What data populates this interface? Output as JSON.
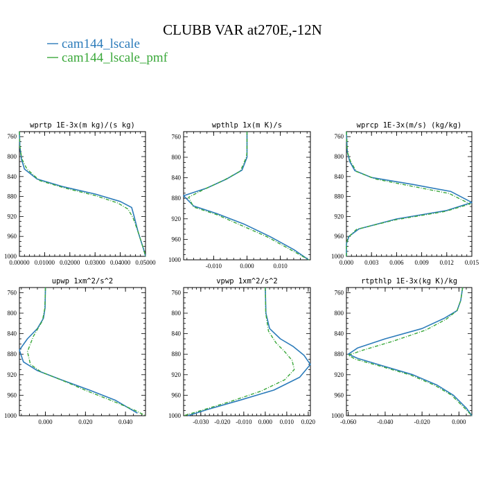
{
  "title": "CLUBB VAR at270E,-12N",
  "legend": [
    {
      "name": "cam144_lscale",
      "color": "#2b7bba"
    },
    {
      "name": "cam144_lscale_pmf",
      "color": "#3aa83a"
    }
  ],
  "chart_data": [
    {
      "type": "line",
      "title": "wprtp  1E-3x(m kg)/(s kg)",
      "xlim": [
        0,
        0.05
      ],
      "ylim": [
        1000,
        750
      ],
      "xticks": [
        "0.00000",
        "0.01000",
        "0.02000",
        "0.03000",
        "0.04000",
        "0.05000"
      ],
      "xtick_values": [
        0,
        0.01,
        0.02,
        0.03,
        0.04,
        0.05
      ],
      "yticks": [
        "760",
        "800",
        "840",
        "880",
        "920",
        "960",
        "1000"
      ],
      "ytick_values": [
        760,
        800,
        840,
        880,
        920,
        960,
        1000
      ],
      "series": [
        {
          "name": "cam144_lscale",
          "x": [
            0,
            0.0002,
            0.0008,
            0.002,
            0.007,
            0.017,
            0.03,
            0.04,
            0.0445,
            0.0455,
            0.047,
            0.0495,
            0.05
          ],
          "y": [
            750,
            780,
            805,
            825,
            845,
            860,
            875,
            890,
            902,
            920,
            950,
            990,
            1000
          ]
        },
        {
          "name": "cam144_lscale_pmf",
          "x": [
            0,
            0.0002,
            0.001,
            0.003,
            0.008,
            0.018,
            0.03,
            0.039,
            0.043,
            0.045,
            0.047,
            0.0495,
            0.05
          ],
          "y": [
            750,
            780,
            805,
            825,
            848,
            863,
            878,
            893,
            905,
            922,
            950,
            990,
            1000
          ]
        }
      ]
    },
    {
      "type": "line",
      "title": "wpthlp  1x(m K)/s",
      "xlim": [
        -0.019,
        0.019
      ],
      "ylim": [
        1000,
        750
      ],
      "xticks": [
        "-0.010",
        "0.000",
        "0.010"
      ],
      "xtick_values": [
        -0.01,
        0,
        0.01
      ],
      "yticks": [
        "760",
        "800",
        "840",
        "880",
        "920",
        "960",
        "1000"
      ],
      "ytick_values": [
        760,
        800,
        840,
        880,
        920,
        960,
        1000
      ],
      "series": [
        {
          "name": "cam144_lscale",
          "x": [
            0,
            0,
            0,
            -0.0015,
            -0.006,
            -0.012,
            -0.019,
            -0.016,
            -0.009,
            -0.001,
            0.007,
            0.014,
            0.0185
          ],
          "y": [
            750,
            790,
            800,
            825,
            842,
            860,
            875,
            895,
            910,
            930,
            955,
            980,
            1000
          ]
        },
        {
          "name": "cam144_lscale_pmf",
          "x": [
            0,
            0,
            -0.0002,
            -0.002,
            -0.007,
            -0.013,
            -0.0175,
            -0.016,
            -0.009,
            -0.002,
            0.006,
            0.013,
            0.0185
          ],
          "y": [
            750,
            790,
            800,
            827,
            845,
            863,
            878,
            897,
            912,
            932,
            955,
            980,
            1000
          ]
        }
      ]
    },
    {
      "type": "line",
      "title": "wprcp  1E-3x(m/s) (kg/kg)",
      "xlim": [
        0,
        0.015
      ],
      "ylim": [
        1000,
        750
      ],
      "xticks": [
        "0.000",
        "0.003",
        "0.006",
        "0.009",
        "0.012",
        "0.015"
      ],
      "xtick_values": [
        0,
        0.003,
        0.006,
        0.009,
        0.012,
        0.015
      ],
      "yticks": [
        "760",
        "800",
        "840",
        "880",
        "920",
        "960",
        "1000"
      ],
      "ytick_values": [
        760,
        800,
        840,
        880,
        920,
        960,
        1000
      ],
      "series": [
        {
          "name": "cam144_lscale",
          "x": [
            0,
            0.0001,
            0.0004,
            0.001,
            0.003,
            0.008,
            0.0125,
            0.015,
            0.012,
            0.006,
            0.0015,
            0.0003,
            0,
            0
          ],
          "y": [
            750,
            790,
            810,
            828,
            842,
            856,
            870,
            892,
            908,
            925,
            945,
            960,
            975,
            1000
          ]
        },
        {
          "name": "cam144_lscale_pmf",
          "x": [
            0,
            0.0001,
            0.0005,
            0.0012,
            0.0035,
            0.008,
            0.0123,
            0.0148,
            0.0118,
            0.0058,
            0.0012,
            0.0002,
            0,
            0
          ],
          "y": [
            750,
            790,
            810,
            830,
            845,
            860,
            874,
            895,
            910,
            927,
            946,
            962,
            975,
            1000
          ]
        }
      ]
    },
    {
      "type": "line",
      "title": "upwp   1xm^2/s^2",
      "xlim": [
        -0.013,
        0.05
      ],
      "ylim": [
        1000,
        750
      ],
      "xticks": [
        "0.000",
        "0.020",
        "0.040"
      ],
      "xtick_values": [
        0,
        0.02,
        0.04
      ],
      "yticks": [
        "760",
        "800",
        "840",
        "880",
        "920",
        "960",
        "1000"
      ],
      "ytick_values": [
        760,
        800,
        840,
        880,
        920,
        960,
        1000
      ],
      "series": [
        {
          "name": "cam144_lscale",
          "x": [
            0,
            -0.0002,
            -0.001,
            -0.004,
            -0.009,
            -0.013,
            -0.011,
            -0.004,
            0.008,
            0.022,
            0.035,
            0.046
          ],
          "y": [
            750,
            790,
            810,
            830,
            850,
            872,
            895,
            912,
            930,
            950,
            970,
            995
          ]
        },
        {
          "name": "cam144_lscale_pmf",
          "x": [
            0,
            -0.0003,
            -0.0015,
            -0.006,
            -0.009,
            -0.0075,
            -0.002,
            0.009,
            0.021,
            0.034,
            0.045,
            0.05
          ],
          "y": [
            750,
            790,
            815,
            845,
            875,
            900,
            915,
            932,
            952,
            972,
            990,
            1000
          ]
        }
      ]
    },
    {
      "type": "line",
      "title": "vpwp   1xm^2/s^2",
      "xlim": [
        -0.038,
        0.021
      ],
      "ylim": [
        1000,
        750
      ],
      "xticks": [
        "-0.030",
        "-0.020",
        "-0.010",
        "0.000",
        "0.010",
        "0.020"
      ],
      "xtick_values": [
        -0.03,
        -0.02,
        -0.01,
        0,
        0.01,
        0.02
      ],
      "yticks": [
        "760",
        "800",
        "840",
        "880",
        "920",
        "960",
        "1000"
      ],
      "ytick_values": [
        760,
        800,
        840,
        880,
        920,
        960,
        1000
      ],
      "series": [
        {
          "name": "cam144_lscale",
          "x": [
            0,
            0.0003,
            0.002,
            0.007,
            0.013,
            0.018,
            0.021,
            0.016,
            0.004,
            -0.012,
            -0.027,
            -0.036
          ],
          "y": [
            750,
            800,
            830,
            850,
            865,
            882,
            900,
            925,
            950,
            970,
            988,
            1000
          ]
        },
        {
          "name": "cam144_lscale_pmf",
          "x": [
            0,
            0.0002,
            0.0015,
            0.005,
            0.009,
            0.0125,
            0.0135,
            0.009,
            -0.002,
            -0.016,
            -0.03,
            -0.038
          ],
          "y": [
            750,
            800,
            835,
            858,
            875,
            892,
            910,
            930,
            952,
            972,
            990,
            1000
          ]
        }
      ]
    },
    {
      "type": "line",
      "title": "rtpthlp  1E-3x(kg K)/kg",
      "xlim": [
        -0.061,
        0.007
      ],
      "ylim": [
        1000,
        750
      ],
      "xticks": [
        "-0.060",
        "-0.040",
        "-0.020",
        "0.000"
      ],
      "xtick_values": [
        -0.06,
        -0.04,
        -0.02,
        0
      ],
      "yticks": [
        "760",
        "800",
        "840",
        "880",
        "920",
        "960",
        "1000"
      ],
      "ytick_values": [
        760,
        800,
        840,
        880,
        920,
        960,
        1000
      ],
      "series": [
        {
          "name": "cam144_lscale",
          "x": [
            0.002,
            0.001,
            -0.001,
            -0.008,
            -0.02,
            -0.04,
            -0.055,
            -0.06,
            -0.055,
            -0.042,
            -0.025,
            -0.012,
            -0.003,
            0.004,
            0.007
          ],
          "y": [
            750,
            775,
            795,
            810,
            830,
            850,
            868,
            880,
            888,
            902,
            920,
            940,
            960,
            985,
            1000
          ]
        },
        {
          "name": "cam144_lscale_pmf",
          "x": [
            0.002,
            0.001,
            -0.001,
            -0.007,
            -0.018,
            -0.036,
            -0.052,
            -0.06,
            -0.056,
            -0.043,
            -0.026,
            -0.013,
            -0.004,
            0.003,
            0.007
          ],
          "y": [
            750,
            775,
            795,
            812,
            833,
            855,
            872,
            882,
            890,
            903,
            921,
            941,
            960,
            985,
            1000
          ]
        }
      ]
    }
  ]
}
